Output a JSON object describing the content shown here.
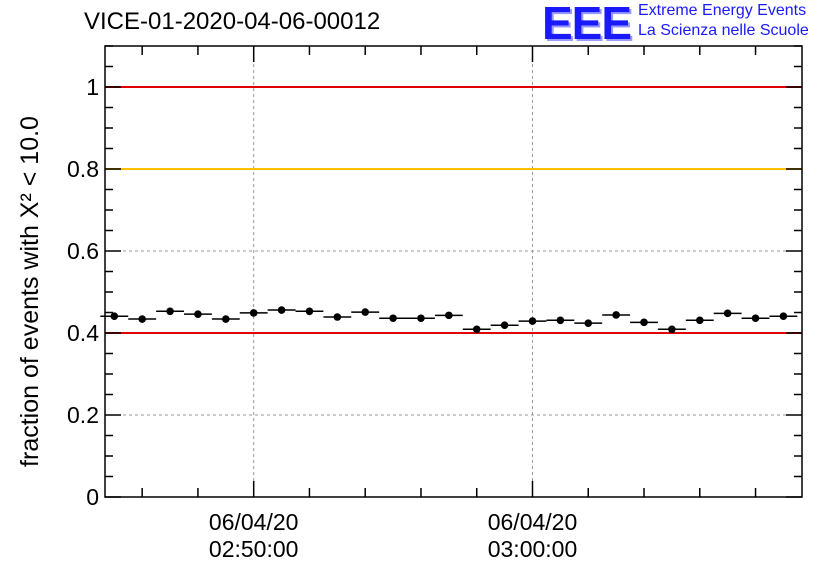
{
  "header": {
    "title": "VICE-01-2020-04-06-00012"
  },
  "logo": {
    "mark": "EEE",
    "line1": "Extreme Energy Events",
    "line2": "La Scienza nelle Scuole",
    "color": "#1a1aff"
  },
  "chart_data": {
    "type": "scatter",
    "title": "VICE-01-2020-04-06-00012",
    "ylabel": "fraction of events with X² < 10.0",
    "xlabel": "",
    "ylim": [
      0,
      1.1
    ],
    "xlim": [
      "2020-04-06 02:44:40",
      "2020-04-06 03:09:40"
    ],
    "grid": true,
    "y_ticks": [
      0,
      0.2,
      0.4,
      0.6,
      0.8,
      1
    ],
    "y_tick_labels": [
      "0",
      "0.2",
      "0.4",
      "0.6",
      "0.8",
      "1"
    ],
    "x_ticks": [
      {
        "time": "2020-04-06 02:50:00",
        "line1": "06/04/20",
        "line2": "02:50:00"
      },
      {
        "time": "2020-04-06 03:00:00",
        "line1": "06/04/20",
        "line2": "03:00:00"
      }
    ],
    "reference_lines": [
      {
        "y": 1.0,
        "color": "#e00000"
      },
      {
        "y": 0.8,
        "color": "#ffc000"
      },
      {
        "y": 0.4,
        "color": "#e00000"
      }
    ],
    "bin_width_seconds": 60,
    "series": [
      {
        "marker_color": "#000000",
        "points": [
          {
            "x": "2020-04-06 02:45:00",
            "y": 0.441
          },
          {
            "x": "2020-04-06 02:46:00",
            "y": 0.434
          },
          {
            "x": "2020-04-06 02:47:00",
            "y": 0.453
          },
          {
            "x": "2020-04-06 02:48:00",
            "y": 0.446
          },
          {
            "x": "2020-04-06 02:49:00",
            "y": 0.434
          },
          {
            "x": "2020-04-06 02:50:00",
            "y": 0.449
          },
          {
            "x": "2020-04-06 02:51:00",
            "y": 0.456
          },
          {
            "x": "2020-04-06 02:52:00",
            "y": 0.453
          },
          {
            "x": "2020-04-06 02:53:00",
            "y": 0.439
          },
          {
            "x": "2020-04-06 02:54:00",
            "y": 0.451
          },
          {
            "x": "2020-04-06 02:55:00",
            "y": 0.436
          },
          {
            "x": "2020-04-06 02:56:00",
            "y": 0.436
          },
          {
            "x": "2020-04-06 02:57:00",
            "y": 0.443
          },
          {
            "x": "2020-04-06 02:58:00",
            "y": 0.409
          },
          {
            "x": "2020-04-06 02:59:00",
            "y": 0.419
          },
          {
            "x": "2020-04-06 03:00:00",
            "y": 0.429
          },
          {
            "x": "2020-04-06 03:01:00",
            "y": 0.431
          },
          {
            "x": "2020-04-06 03:02:00",
            "y": 0.424
          },
          {
            "x": "2020-04-06 03:03:00",
            "y": 0.444
          },
          {
            "x": "2020-04-06 03:04:00",
            "y": 0.426
          },
          {
            "x": "2020-04-06 03:05:00",
            "y": 0.409
          },
          {
            "x": "2020-04-06 03:06:00",
            "y": 0.431
          },
          {
            "x": "2020-04-06 03:07:00",
            "y": 0.448
          },
          {
            "x": "2020-04-06 03:08:00",
            "y": 0.436
          },
          {
            "x": "2020-04-06 03:09:00",
            "y": 0.441
          }
        ]
      }
    ]
  }
}
